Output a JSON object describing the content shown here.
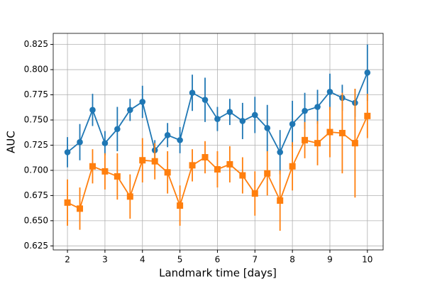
{
  "chart_data": {
    "type": "errorbar_line",
    "xlabel": "Landmark time [days]",
    "ylabel": "AUC",
    "x": [
      2,
      2.33,
      2.67,
      3,
      3.33,
      3.67,
      4,
      4.33,
      4.67,
      5,
      5.33,
      5.67,
      6,
      6.33,
      6.67,
      7,
      7.33,
      7.67,
      8,
      8.33,
      8.67,
      9,
      9.33,
      9.67,
      10
    ],
    "series": [
      {
        "color": "#1f77b4",
        "marker": "circle",
        "values": [
          0.718,
          0.728,
          0.76,
          0.727,
          0.741,
          0.76,
          0.768,
          0.72,
          0.735,
          0.73,
          0.777,
          0.77,
          0.751,
          0.758,
          0.749,
          0.755,
          0.742,
          0.718,
          0.746,
          0.759,
          0.763,
          0.778,
          0.772,
          0.767,
          0.797
        ],
        "errors": [
          0.015,
          0.018,
          0.016,
          0.012,
          0.022,
          0.011,
          0.016,
          0.01,
          0.012,
          0.013,
          0.018,
          0.022,
          0.012,
          0.013,
          0.018,
          0.018,
          0.023,
          0.022,
          0.023,
          0.018,
          0.017,
          0.018,
          0.013,
          0.014,
          0.028
        ]
      },
      {
        "color": "#ff7f0e",
        "marker": "square",
        "values": [
          0.668,
          0.662,
          0.704,
          0.699,
          0.694,
          0.674,
          0.71,
          0.709,
          0.698,
          0.665,
          0.705,
          0.713,
          0.701,
          0.706,
          0.695,
          0.677,
          0.697,
          0.67,
          0.704,
          0.73,
          0.727,
          0.738,
          0.737,
          0.727,
          0.754
        ],
        "errors": [
          0.023,
          0.021,
          0.017,
          0.018,
          0.023,
          0.022,
          0.022,
          0.018,
          0.021,
          0.02,
          0.016,
          0.016,
          0.018,
          0.018,
          0.018,
          0.022,
          0.022,
          0.03,
          0.024,
          0.018,
          0.022,
          0.025,
          0.04,
          0.054,
          0.022
        ]
      }
    ],
    "xlim": [
      1.62,
      10.42
    ],
    "xticks": [
      2,
      3,
      4,
      5,
      6,
      7,
      8,
      9,
      10
    ],
    "ylim": [
      0.621,
      0.836
    ],
    "yticks": [
      0.625,
      {
        "value": 0.65,
        "label": "0.650"
      },
      0.675,
      {
        "value": 0.7,
        "label": "0.700"
      },
      0.725,
      {
        "value": 0.75,
        "label": "0.750"
      },
      0.775,
      {
        "value": 0.8,
        "label": "0.800"
      },
      0.825
    ],
    "grid": true
  }
}
